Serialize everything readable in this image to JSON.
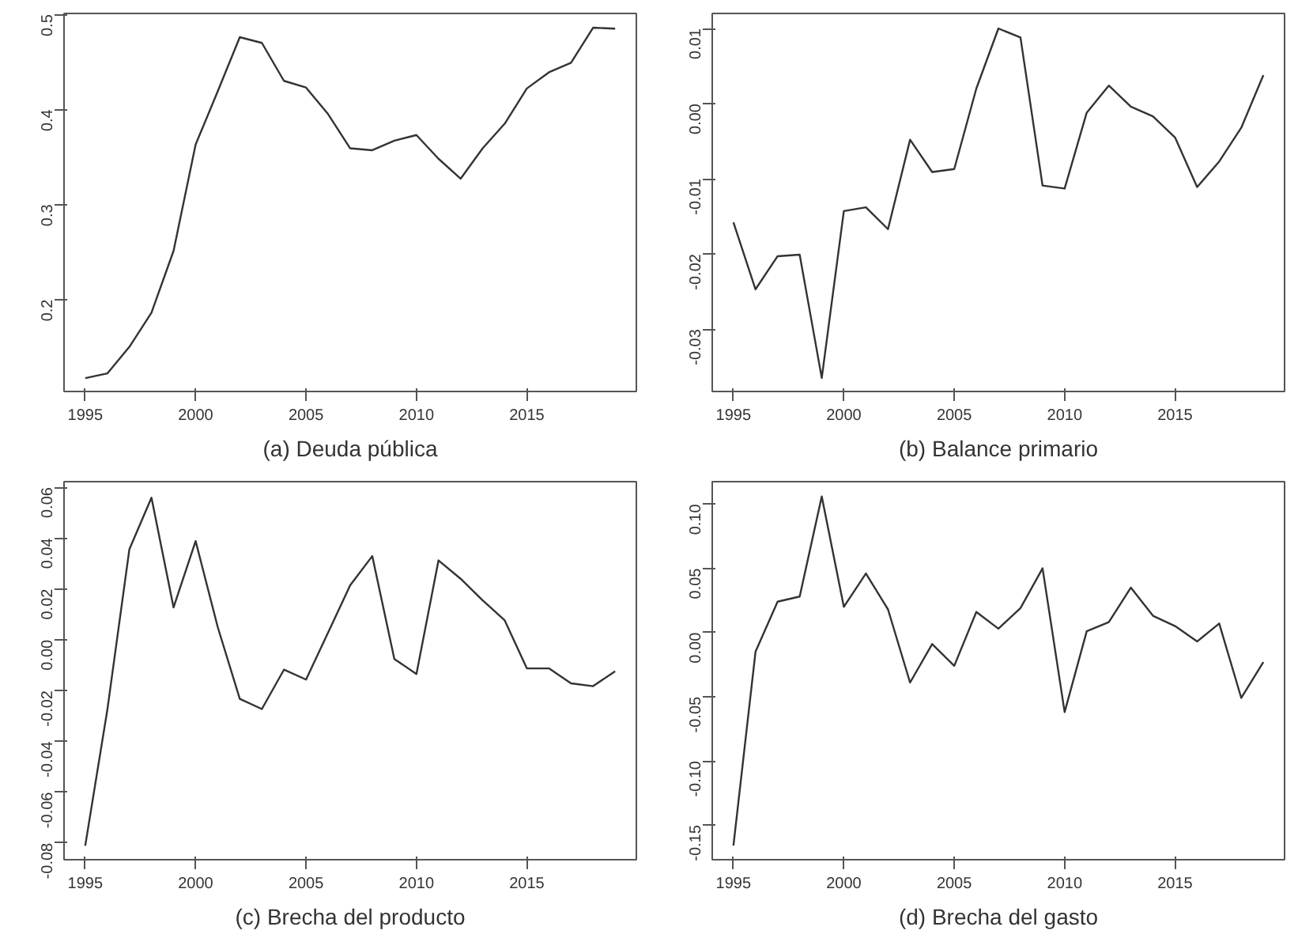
{
  "chart_data": [
    {
      "type": "line",
      "title": "(a) Deuda pública",
      "x": [
        1995,
        1996,
        1997,
        1998,
        1999,
        2000,
        2001,
        2002,
        2003,
        2004,
        2005,
        2006,
        2007,
        2008,
        2009,
        2010,
        2011,
        2012,
        2013,
        2014,
        2015,
        2016,
        2017,
        2018,
        2019
      ],
      "series": [
        {
          "color": "#333333",
          "values": [
            0.117,
            0.122,
            0.15,
            0.186,
            0.251,
            0.363,
            0.419,
            0.476,
            0.47,
            0.43,
            0.423,
            0.395,
            0.359,
            0.357,
            0.367,
            0.373,
            0.348,
            0.327,
            0.359,
            0.385,
            0.422,
            0.439,
            0.449,
            0.486,
            0.485
          ]
        }
      ],
      "xlim": [
        1994.04,
        2019.96
      ],
      "xticks": [
        1995,
        2000,
        2005,
        2010,
        2015
      ],
      "ylim": [
        0.103,
        0.501
      ],
      "yticks": [
        {
          "value": 0.2,
          "label": "0.2"
        },
        {
          "value": 0.3,
          "label": "0.3"
        },
        {
          "value": 0.4,
          "label": "0.4"
        },
        {
          "value": 0.5,
          "label": "0.5"
        }
      ],
      "grid": false
    },
    {
      "type": "line",
      "title": "(b) Balance primario",
      "x": [
        1995,
        1996,
        1997,
        1998,
        1999,
        2000,
        2001,
        2002,
        2003,
        2004,
        2005,
        2006,
        2007,
        2008,
        2009,
        2010,
        2011,
        2012,
        2013,
        2014,
        2015,
        2016,
        2017,
        2018,
        2019
      ],
      "series": [
        {
          "color": "#333333",
          "values": [
            -0.0158,
            -0.0247,
            -0.0203,
            -0.0201,
            -0.0365,
            -0.0143,
            -0.0138,
            -0.0167,
            -0.0048,
            -0.0091,
            -0.0087,
            0.002,
            0.01,
            0.0088,
            -0.0109,
            -0.0113,
            -0.0012,
            0.0024,
            -0.0004,
            -0.0017,
            -0.0045,
            -0.0111,
            -0.0077,
            -0.0032,
            0.0038
          ]
        }
      ],
      "xlim": [
        1994.04,
        2019.96
      ],
      "xticks": [
        1995,
        2000,
        2005,
        2010,
        2015
      ],
      "ylim": [
        -0.0383,
        0.012
      ],
      "yticks": [
        {
          "value": -0.03,
          "label": "-0.03"
        },
        {
          "value": -0.02,
          "label": "-0.02"
        },
        {
          "value": -0.01,
          "label": "-0.01"
        },
        {
          "value": 0,
          "label": "0.00"
        },
        {
          "value": 0.01,
          "label": "0.01"
        }
      ],
      "grid": false
    },
    {
      "type": "line",
      "title": "(c) Brecha del producto",
      "x": [
        1995,
        1996,
        1997,
        1998,
        1999,
        2000,
        2001,
        2002,
        2003,
        2004,
        2005,
        2006,
        2007,
        2008,
        2009,
        2010,
        2011,
        2012,
        2013,
        2014,
        2015,
        2016,
        2017,
        2018,
        2019
      ],
      "series": [
        {
          "color": "#333333",
          "values": [
            -0.0811,
            -0.0277,
            0.0356,
            0.0559,
            0.0127,
            0.0388,
            0.005,
            -0.0233,
            -0.0273,
            -0.0118,
            -0.0157,
            0.0028,
            0.0214,
            0.0329,
            -0.0076,
            -0.0135,
            0.0312,
            0.024,
            0.0155,
            0.0076,
            -0.0113,
            -0.0113,
            -0.0172,
            -0.0183,
            -0.0124
          ]
        }
      ],
      "xlim": [
        1994.04,
        2019.96
      ],
      "xticks": [
        1995,
        2000,
        2005,
        2010,
        2015
      ],
      "ylim": [
        -0.0866,
        0.0622
      ],
      "yticks": [
        {
          "value": -0.08,
          "label": "-0.08"
        },
        {
          "value": -0.06,
          "label": "-0.06"
        },
        {
          "value": -0.04,
          "label": "-0.04"
        },
        {
          "value": -0.02,
          "label": "-0.02"
        },
        {
          "value": 0,
          "label": "0.00"
        },
        {
          "value": 0.02,
          "label": "0.02"
        },
        {
          "value": 0.04,
          "label": "0.04"
        },
        {
          "value": 0.06,
          "label": "0.06"
        }
      ],
      "grid": false
    },
    {
      "type": "line",
      "title": "(d) Brecha del gasto",
      "x": [
        1995,
        1996,
        1997,
        1998,
        1999,
        2000,
        2001,
        2002,
        2003,
        2004,
        2005,
        2006,
        2007,
        2008,
        2009,
        2010,
        2011,
        2012,
        2013,
        2014,
        2015,
        2016,
        2017,
        2018,
        2019
      ],
      "series": [
        {
          "color": "#333333",
          "values": [
            -0.166,
            -0.015,
            0.024,
            0.028,
            0.106,
            0.02,
            0.046,
            0.018,
            -0.039,
            -0.009,
            -0.026,
            0.016,
            0.003,
            0.019,
            0.05,
            -0.062,
            0.001,
            0.008,
            0.035,
            0.013,
            0.005,
            -0.007,
            0.007,
            -0.051,
            -0.023
          ]
        }
      ],
      "xlim": [
        1994.04,
        2019.96
      ],
      "xticks": [
        1995,
        2000,
        2005,
        2010,
        2015
      ],
      "ylim": [
        -0.177,
        0.1175
      ],
      "yticks": [
        {
          "value": -0.15,
          "label": "-0.15"
        },
        {
          "value": -0.1,
          "label": "-0.10"
        },
        {
          "value": -0.05,
          "label": "-0.05"
        },
        {
          "value": 0,
          "label": "0.00"
        },
        {
          "value": 0.05,
          "label": "0.05"
        },
        {
          "value": 0.1,
          "label": "0.10"
        }
      ],
      "grid": false
    }
  ]
}
